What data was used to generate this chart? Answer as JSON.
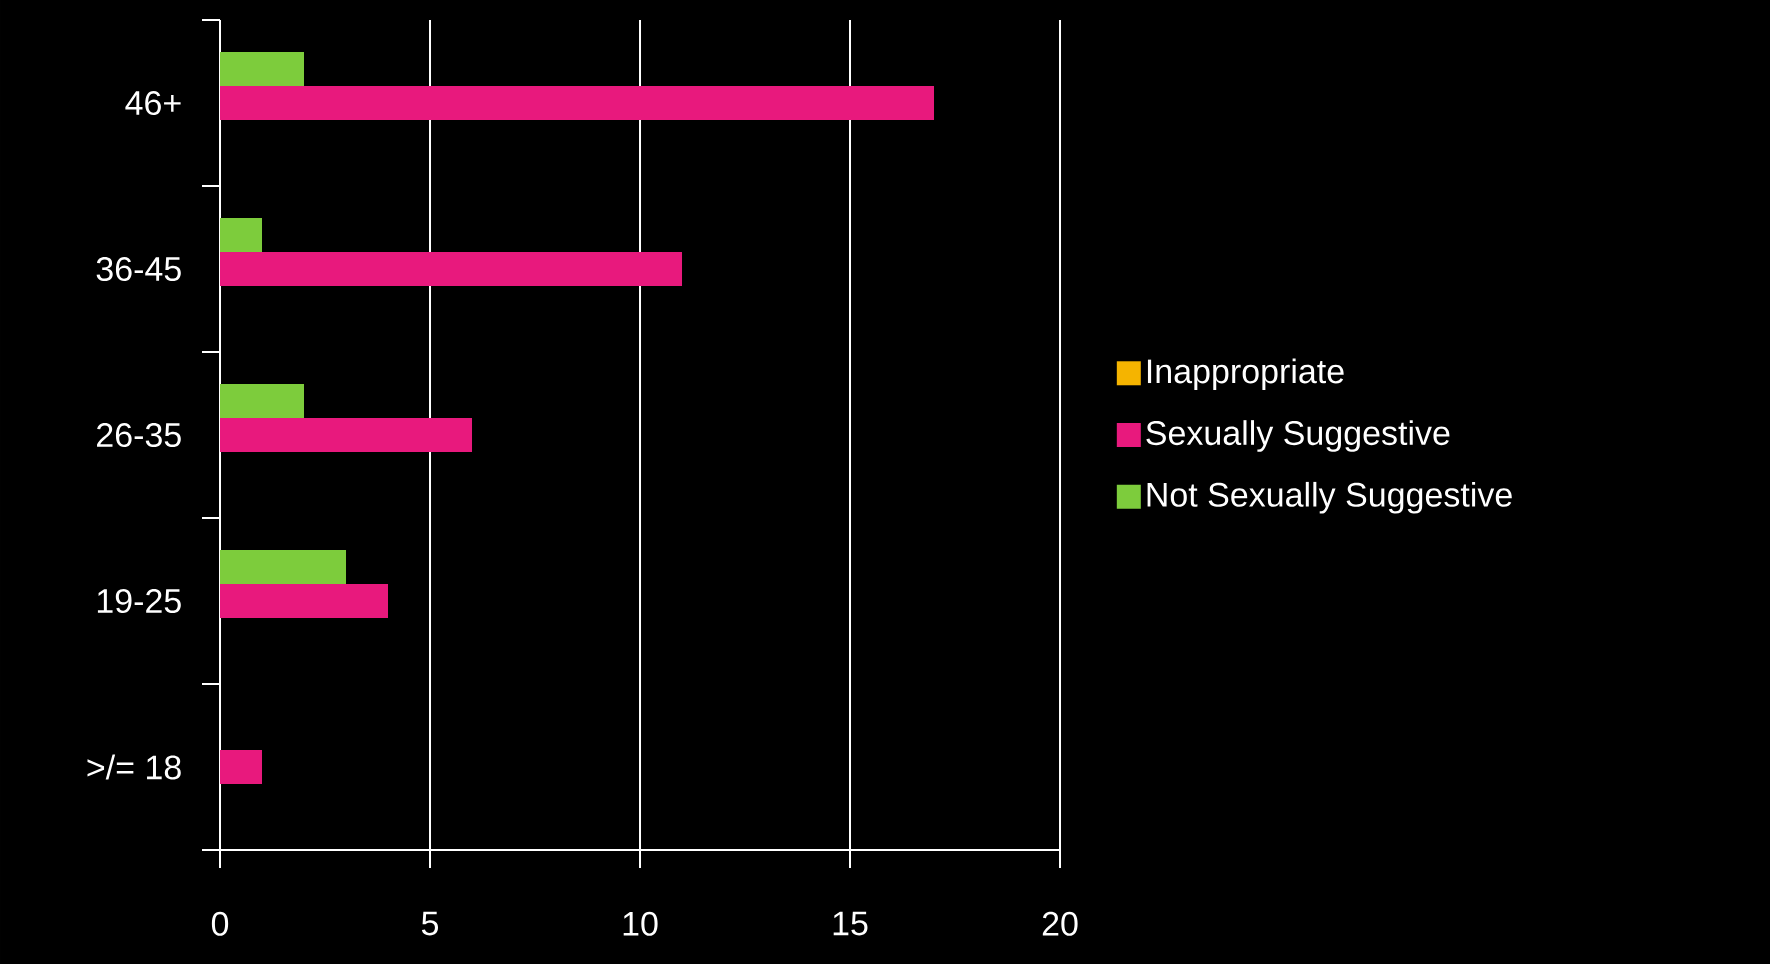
{
  "chart_data": {
    "type": "bar",
    "orientation": "horizontal",
    "categories": [
      "46+",
      "36-45",
      "26-35",
      "19-25",
      ">/= 18"
    ],
    "series": [
      {
        "name": "Inappropriate",
        "color": "#f5b400",
        "values": [
          0,
          0,
          0,
          0,
          0
        ]
      },
      {
        "name": "Sexually Suggestive",
        "color": "#e8197d",
        "values": [
          17,
          11,
          6,
          4,
          1
        ]
      },
      {
        "name": "Not Sexually Suggestive",
        "color": "#7dcc3c",
        "values": [
          2,
          1,
          2,
          3,
          0
        ]
      }
    ],
    "xlim": [
      0,
      20
    ],
    "xticks": [
      0,
      5,
      10,
      15,
      20
    ],
    "grid": "x",
    "legend": "right"
  }
}
